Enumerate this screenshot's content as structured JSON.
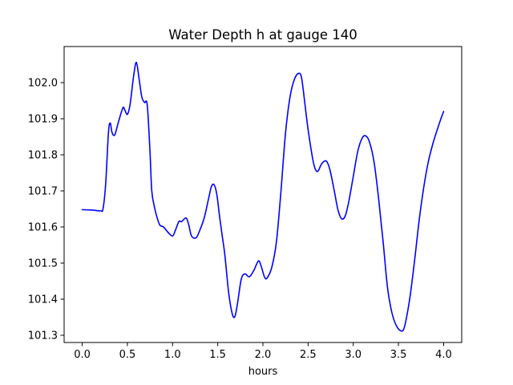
{
  "chart_data": {
    "type": "line",
    "title": "Water Depth h at gauge 140",
    "xlabel": "hours",
    "ylabel": "",
    "xlim": [
      -0.2,
      4.2
    ],
    "ylim": [
      101.28,
      102.1
    ],
    "xticks": [
      0.0,
      0.5,
      1.0,
      1.5,
      2.0,
      2.5,
      3.0,
      3.5,
      4.0
    ],
    "xtick_labels": [
      "0.0",
      "0.5",
      "1.0",
      "1.5",
      "2.0",
      "2.5",
      "3.0",
      "3.5",
      "4.0"
    ],
    "yticks": [
      101.3,
      101.4,
      101.5,
      101.6,
      101.7,
      101.8,
      101.9,
      102.0
    ],
    "ytick_labels": [
      "101.3",
      "101.4",
      "101.5",
      "101.6",
      "101.7",
      "101.8",
      "101.9",
      "102.0"
    ],
    "grid": false,
    "series": [
      {
        "name": "",
        "color": "#0000ff",
        "x": [
          0.0,
          0.1,
          0.2,
          0.23,
          0.26,
          0.29,
          0.31,
          0.33,
          0.36,
          0.4,
          0.45,
          0.47,
          0.5,
          0.53,
          0.57,
          0.6,
          0.63,
          0.66,
          0.69,
          0.72,
          0.75,
          0.77,
          0.8,
          0.83,
          0.86,
          0.9,
          0.95,
          1.0,
          1.03,
          1.07,
          1.1,
          1.15,
          1.18,
          1.21,
          1.26,
          1.3,
          1.35,
          1.4,
          1.43,
          1.46,
          1.49,
          1.52,
          1.55,
          1.58,
          1.62,
          1.66,
          1.69,
          1.72,
          1.76,
          1.8,
          1.85,
          1.9,
          1.95,
          1.98,
          2.02,
          2.05,
          2.1,
          2.15,
          2.2,
          2.25,
          2.3,
          2.35,
          2.4,
          2.43,
          2.47,
          2.5,
          2.55,
          2.58,
          2.61,
          2.65,
          2.7,
          2.74,
          2.79,
          2.83,
          2.87,
          2.91,
          2.95,
          3.0,
          3.05,
          3.1,
          3.14,
          3.18,
          3.23,
          3.28,
          3.33,
          3.38,
          3.43,
          3.48,
          3.53,
          3.56,
          3.59,
          3.63,
          3.68,
          3.73,
          3.78,
          3.83,
          3.88,
          3.93,
          3.97,
          4.0
        ],
        "y": [
          101.648,
          101.647,
          101.645,
          101.65,
          101.72,
          101.86,
          101.888,
          101.862,
          101.855,
          101.89,
          101.93,
          101.925,
          101.912,
          101.94,
          102.02,
          102.056,
          102.01,
          101.96,
          101.945,
          101.938,
          101.81,
          101.7,
          101.655,
          101.625,
          101.605,
          101.6,
          101.585,
          101.575,
          101.59,
          101.615,
          101.615,
          101.625,
          101.605,
          101.575,
          101.57,
          101.59,
          101.625,
          101.68,
          101.712,
          101.717,
          101.69,
          101.63,
          101.575,
          101.52,
          101.42,
          101.36,
          101.352,
          101.39,
          101.455,
          101.47,
          101.462,
          101.48,
          101.506,
          101.492,
          101.46,
          101.46,
          101.49,
          101.56,
          101.7,
          101.86,
          101.96,
          102.01,
          102.026,
          102.01,
          101.93,
          101.87,
          101.79,
          101.76,
          101.755,
          101.775,
          101.783,
          101.76,
          101.7,
          101.648,
          101.623,
          101.63,
          101.67,
          101.74,
          101.81,
          101.847,
          101.852,
          101.835,
          101.78,
          101.68,
          101.56,
          101.43,
          101.36,
          101.325,
          101.312,
          101.318,
          101.35,
          101.41,
          101.51,
          101.62,
          101.71,
          101.78,
          101.83,
          101.87,
          101.9,
          101.92
        ]
      }
    ]
  }
}
